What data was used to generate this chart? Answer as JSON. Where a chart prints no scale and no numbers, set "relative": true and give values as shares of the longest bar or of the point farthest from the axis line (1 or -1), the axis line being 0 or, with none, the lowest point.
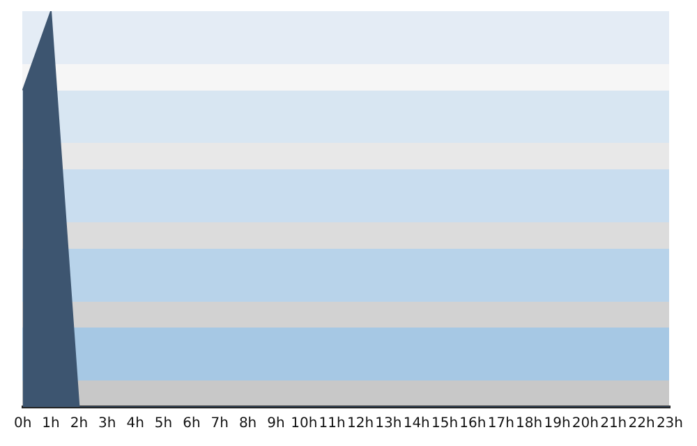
{
  "chart_data": {
    "type": "area",
    "relative": true,
    "categories": [
      "0h",
      "1h",
      "2h",
      "3h",
      "4h",
      "5h",
      "6h",
      "7h",
      "8h",
      "9h",
      "10h",
      "11h",
      "12h",
      "13h",
      "14h",
      "15h",
      "16h",
      "17h",
      "18h",
      "19h",
      "20h",
      "21h",
      "22h",
      "23h"
    ],
    "series": [
      {
        "color": "#3d5570",
        "values": [
          0.8,
          1,
          0,
          0,
          0,
          0,
          0,
          0,
          0,
          0,
          0,
          0,
          0,
          0,
          0,
          0,
          0,
          0,
          0,
          0,
          0,
          0,
          0,
          0
        ]
      }
    ],
    "marker": "none",
    "legend": false,
    "grid": false
  }
}
